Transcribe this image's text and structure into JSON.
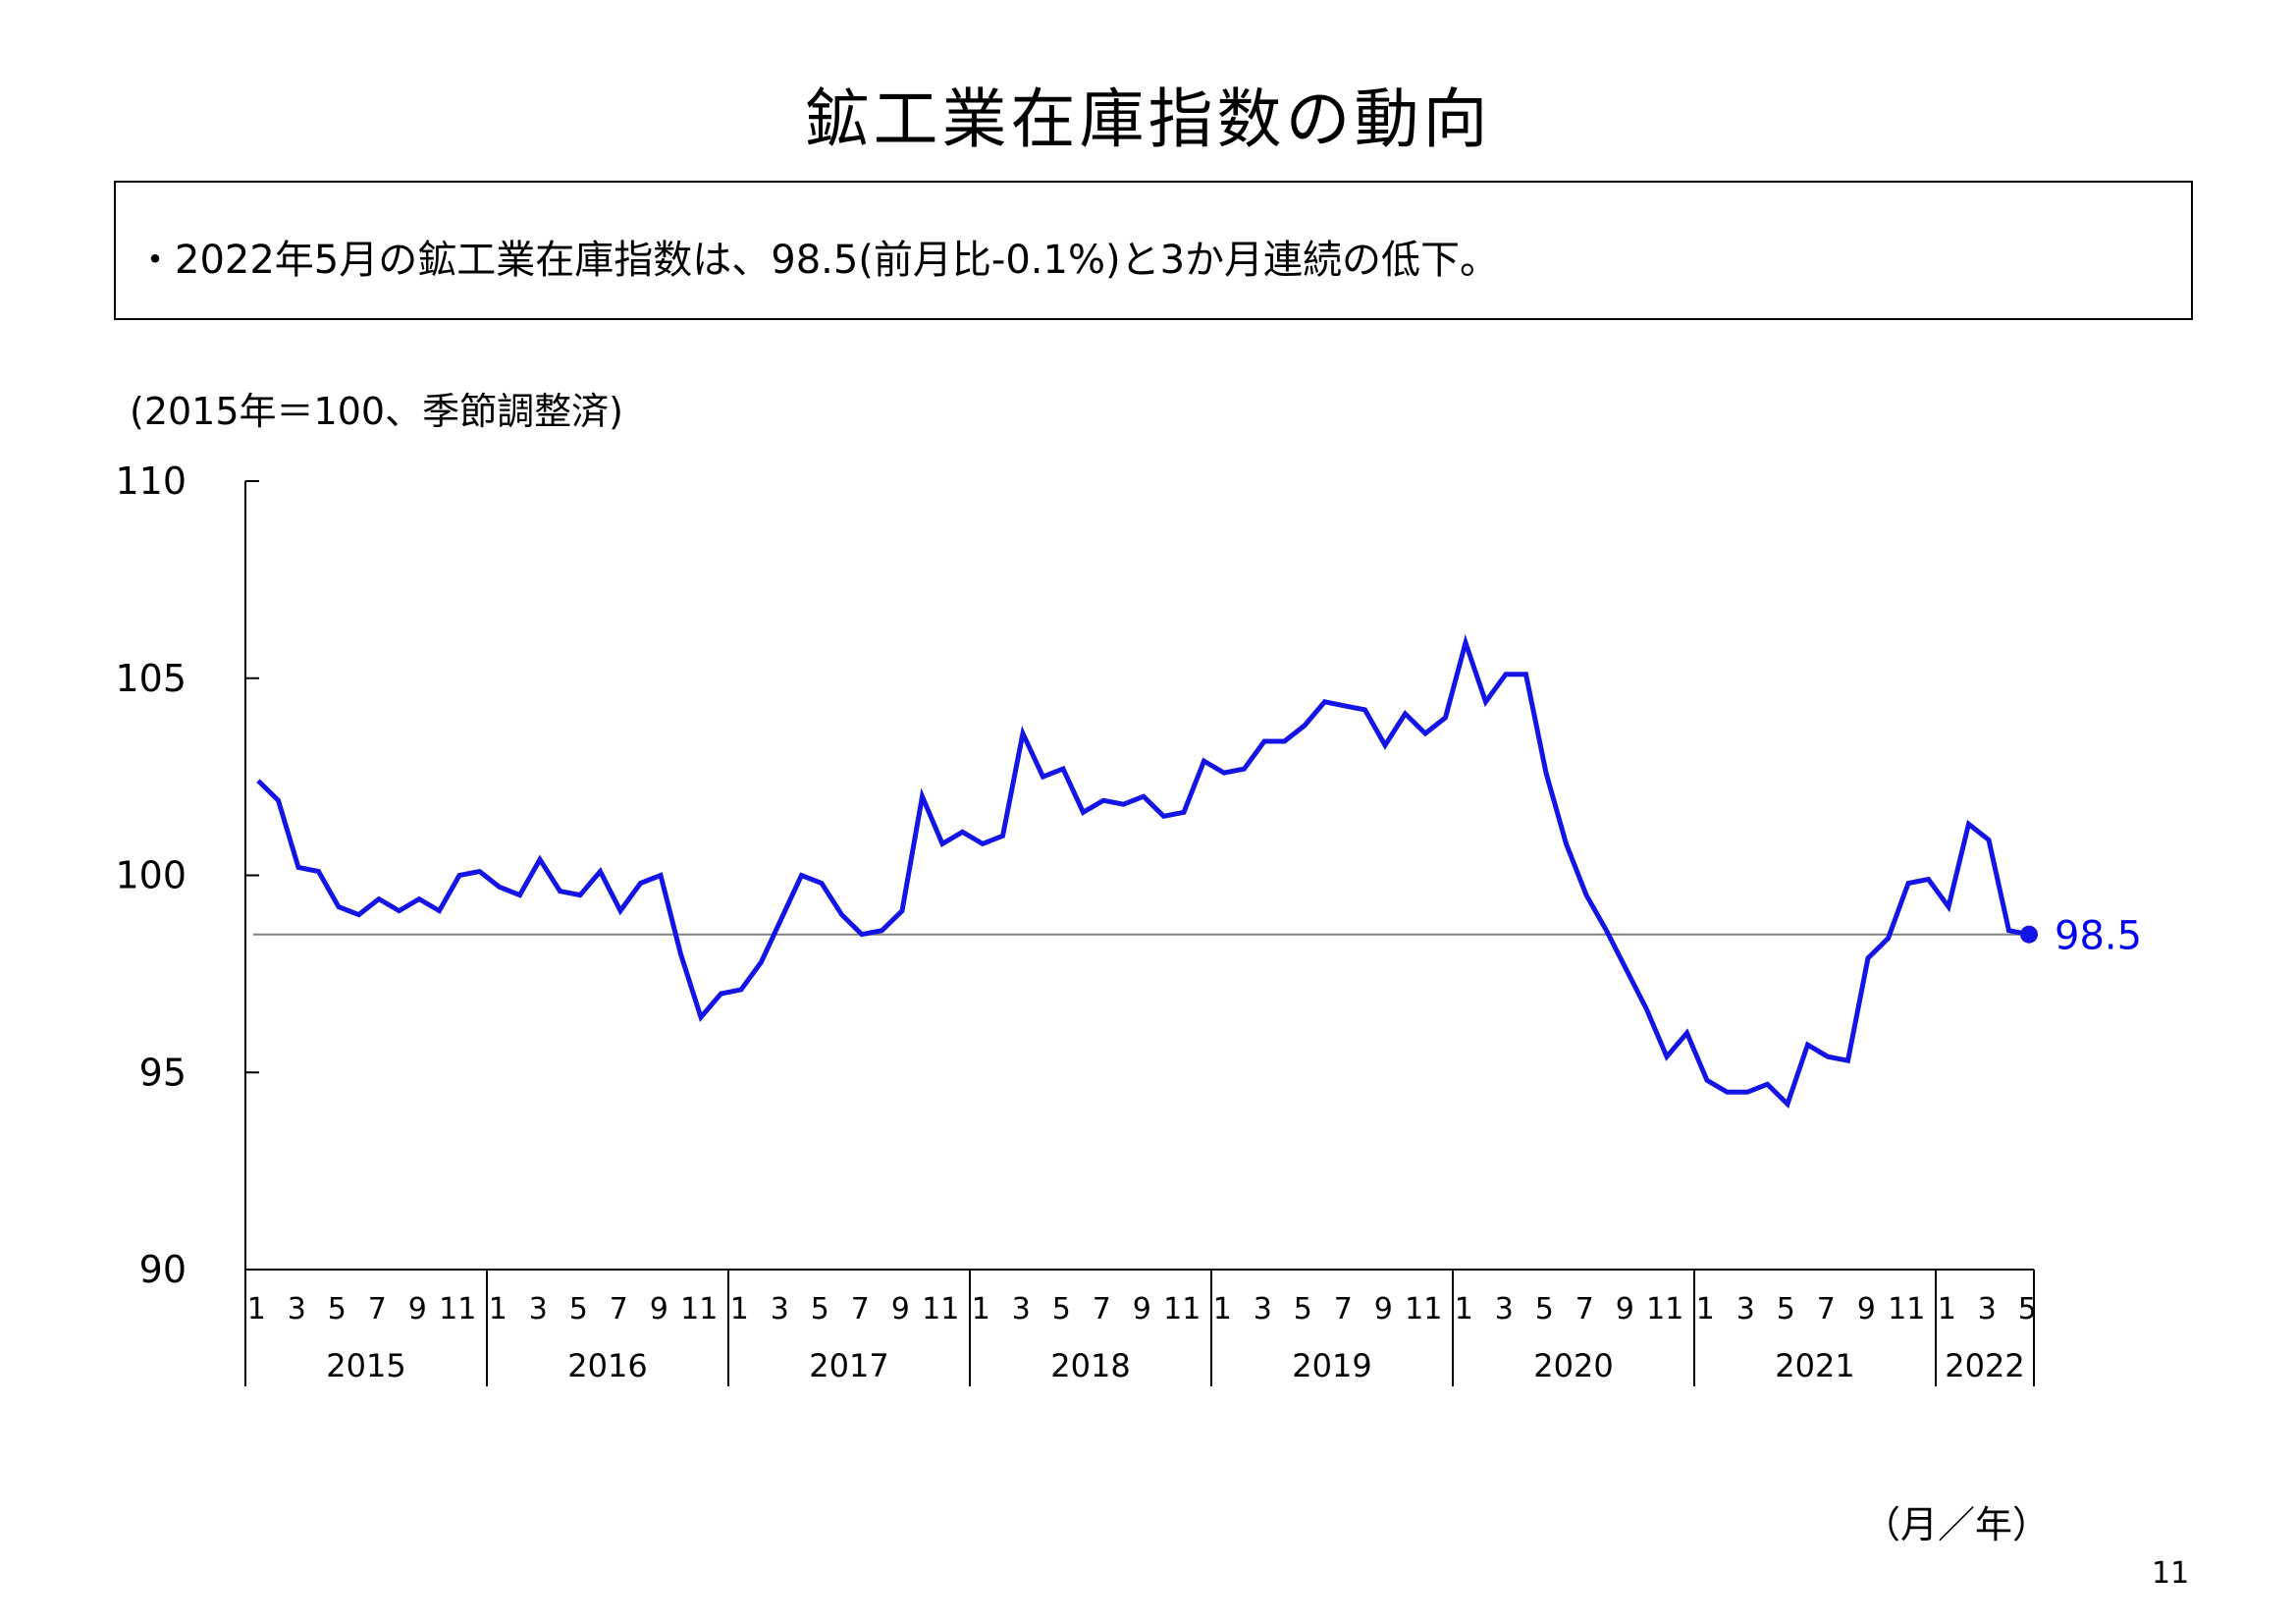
{
  "title": "鉱工業在庫指数の動向",
  "summary": "・2022年5月の鉱工業在庫指数は、98.5(前月比-0.1%)と3か月連続の低下。",
  "unit_note": "(2015年＝100、季節調整済)",
  "x_axis_note": "（月／年）",
  "page_number": "11",
  "colors": {
    "line": "#1414e6",
    "reference": "#808080",
    "axis": "#000000"
  },
  "chart_data": {
    "type": "line",
    "ylim": [
      90,
      110
    ],
    "yticks": [
      90,
      95,
      100,
      105,
      110
    ],
    "ytick_labels": [
      "90",
      "95",
      "100",
      "105",
      "110"
    ],
    "years": [
      "2015",
      "2016",
      "2017",
      "2018",
      "2019",
      "2020",
      "2021",
      "2022"
    ],
    "month_tick_labels": [
      "1",
      "3",
      "5",
      "7",
      "9",
      "11"
    ],
    "month_tick_labels_last_year": [
      "1",
      "3",
      "5"
    ],
    "reference_value": 98.5,
    "end_label": "98.5",
    "series": [
      {
        "values": [
          102.4,
          101.9,
          100.2,
          100.1,
          99.2,
          99.0,
          99.4,
          99.1,
          99.4,
          99.1,
          100.0,
          100.1,
          99.7,
          99.5,
          100.4,
          99.6,
          99.5,
          100.1,
          99.1,
          99.8,
          100.0,
          98.0,
          96.4,
          97.0,
          97.1,
          97.8,
          98.9,
          100.0,
          99.8,
          99.0,
          98.5,
          98.6,
          99.1,
          102.0,
          100.8,
          101.1,
          100.8,
          101.0,
          103.6,
          102.5,
          102.7,
          101.6,
          101.9,
          101.8,
          102.0,
          101.5,
          101.6,
          102.9,
          102.6,
          102.7,
          103.4,
          103.4,
          103.8,
          104.4,
          104.3,
          104.2,
          103.3,
          104.1,
          103.6,
          104.0,
          105.9,
          104.4,
          105.1,
          105.1,
          102.6,
          100.8,
          99.5,
          98.6,
          97.6,
          96.6,
          95.4,
          96.0,
          94.8,
          94.5,
          94.5,
          94.7,
          94.2,
          95.7,
          95.4,
          95.3,
          97.9,
          98.4,
          99.8,
          99.9,
          99.2,
          101.3,
          100.9,
          98.6,
          98.5
        ]
      }
    ],
    "grid": false,
    "legend": "none"
  }
}
